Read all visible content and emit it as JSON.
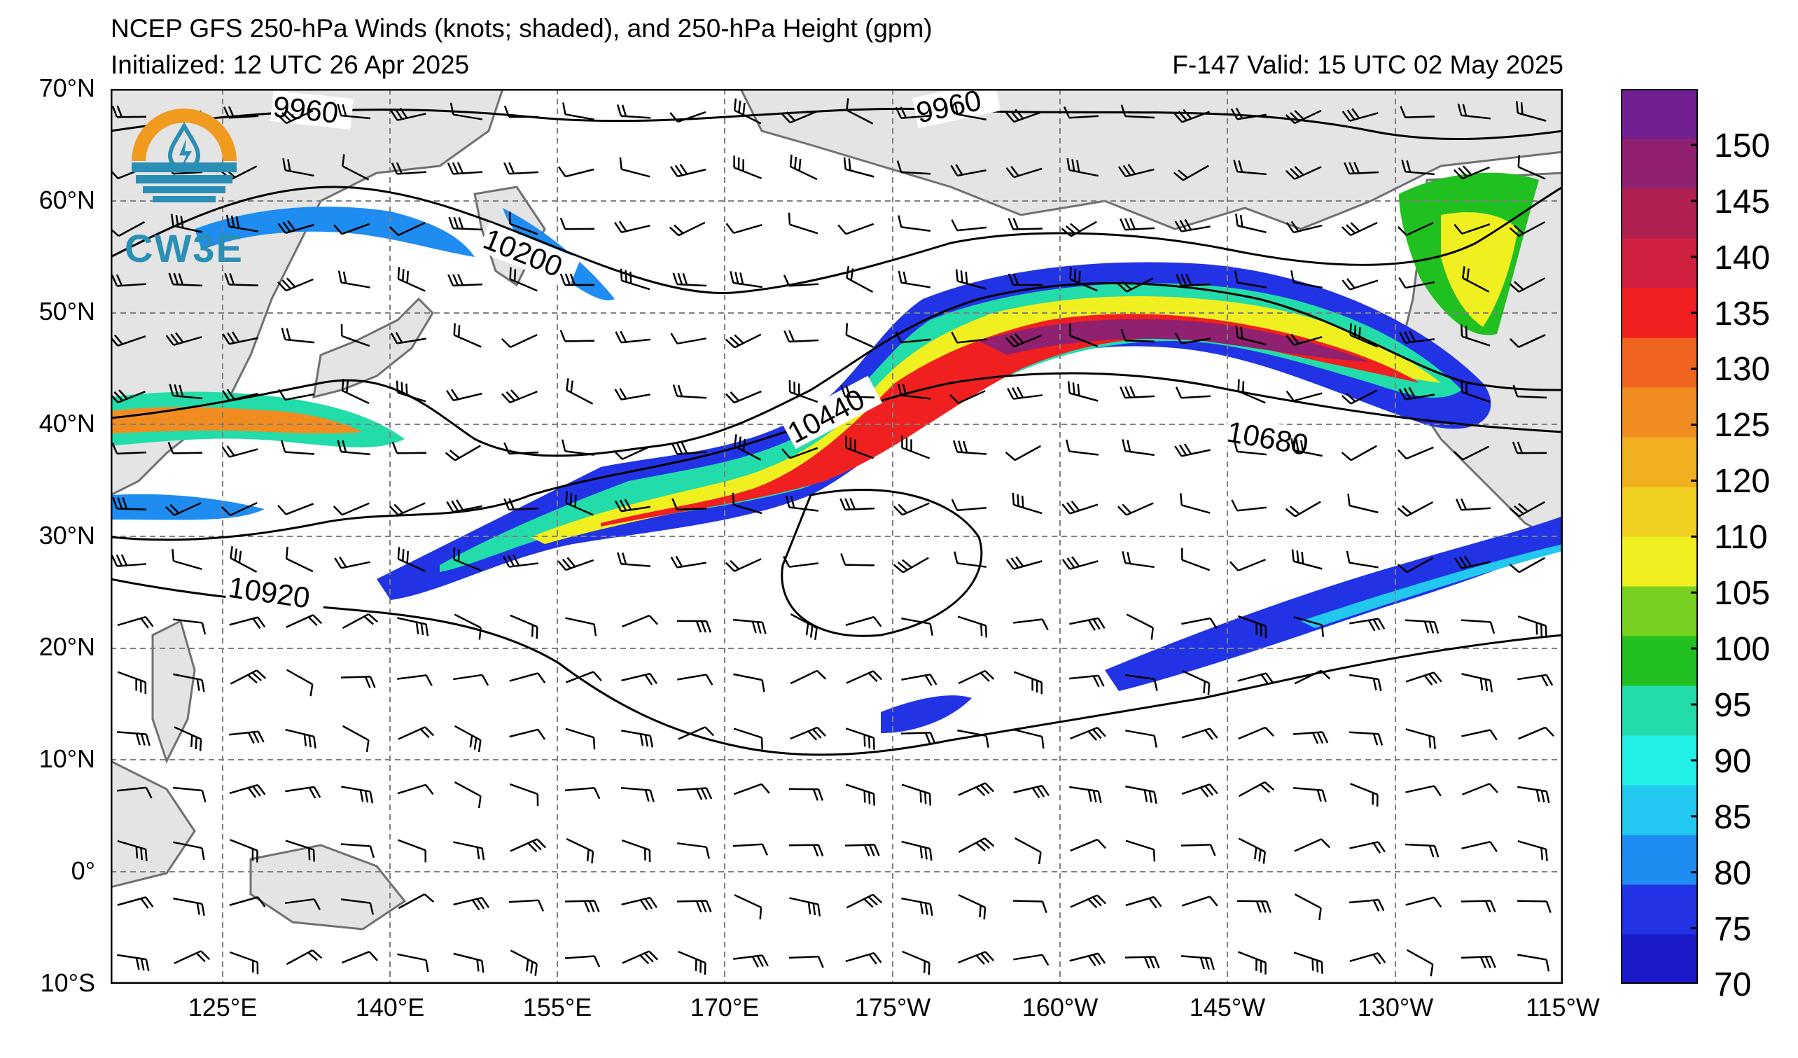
{
  "header": {
    "title": "NCEP GFS 250-hPa Winds (knots; shaded), and 250-hPa Height (gpm)",
    "initialized": "Initialized: 12 UTC 26 Apr 2025",
    "valid": "F-147  Valid: 15 UTC 02 May 2025"
  },
  "logo": {
    "text": "CW3E",
    "icon": "water-drop-logo-icon"
  },
  "map": {
    "lat_labels": [
      "70°N",
      "60°N",
      "50°N",
      "40°N",
      "30°N",
      "20°N",
      "10°N",
      "0°",
      "10°S"
    ],
    "lon_labels": [
      "125°E",
      "140°E",
      "155°E",
      "170°E",
      "175°W",
      "160°W",
      "145°W",
      "130°W",
      "115°W"
    ],
    "lat_range": [
      -10,
      70
    ],
    "lon_range": [
      115,
      245
    ],
    "gridlines": true,
    "land_color": "#e4e4e4",
    "coast_color": "#707070"
  },
  "contours": [
    {
      "value": "9960"
    },
    {
      "value": "9960"
    },
    {
      "value": "10200"
    },
    {
      "value": "10440"
    },
    {
      "value": "10680"
    },
    {
      "value": "10920"
    }
  ],
  "colorbar": {
    "labels": [
      "150",
      "145",
      "140",
      "135",
      "130",
      "125",
      "120",
      "110",
      "105",
      "100",
      "95",
      "90",
      "85",
      "80",
      "75",
      "70"
    ],
    "colors": [
      "#1a1ac8",
      "#2233e6",
      "#1e8cf0",
      "#22c8f0",
      "#22f0e6",
      "#22dcaa",
      "#20c020",
      "#78d020",
      "#f0f020",
      "#f0d020",
      "#f0b020",
      "#f08c20",
      "#f06420",
      "#f02020",
      "#d02040",
      "#b02050",
      "#902070",
      "#702090"
    ]
  }
}
